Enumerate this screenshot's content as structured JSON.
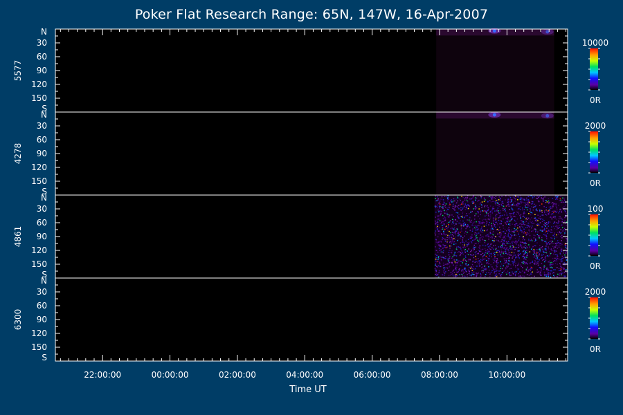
{
  "chart_data": {
    "type": "heatmap",
    "title": "Poker Flat Research Range: 65N, 147W, 16-Apr-2007",
    "xlabel": "Time UT",
    "x_tick_labels": [
      "22:00:00",
      "00:00:00",
      "02:00:00",
      "04:00:00",
      "06:00:00",
      "08:00:00",
      "10:00:00"
    ],
    "x_tick_hours": [
      22,
      24,
      26,
      28,
      30,
      32,
      34
    ],
    "x_range_hours": [
      20.6,
      35.8
    ],
    "y_tick_labels": [
      "N",
      "30",
      "60",
      "90",
      "120",
      "150",
      "S"
    ],
    "y_tick_values": [
      0,
      30,
      60,
      90,
      120,
      150,
      180
    ],
    "y_range": [
      0,
      180
    ],
    "data_start_hour": 31.85,
    "panels": [
      {
        "name": "5577",
        "colorbar_max": "10000",
        "colorbar_min": "0R",
        "features": [
          {
            "type": "band",
            "y_from": 0,
            "y_to": 14,
            "t_from": 31.9,
            "t_to": 35.4,
            "intensity": 0.38
          },
          {
            "type": "spot",
            "t": 33.63,
            "y": 4,
            "intensity": 1.0
          },
          {
            "type": "spot",
            "t": 35.2,
            "y": 6,
            "intensity": 0.65
          }
        ]
      },
      {
        "name": "4278",
        "colorbar_max": "2000",
        "colorbar_min": "0R",
        "features": [
          {
            "type": "band",
            "y_from": 0,
            "y_to": 14,
            "t_from": 31.9,
            "t_to": 35.4,
            "intensity": 0.38
          },
          {
            "type": "spot",
            "t": 33.63,
            "y": 6,
            "intensity": 1.0
          },
          {
            "type": "spot",
            "t": 35.2,
            "y": 8,
            "intensity": 0.65
          }
        ]
      },
      {
        "name": "4861",
        "colorbar_max": "100",
        "colorbar_min": "0R",
        "features": [
          {
            "type": "noise",
            "y_from": 0,
            "y_to": 180,
            "t_from": 31.85,
            "t_to": 35.8,
            "intensity": 0.5
          }
        ]
      },
      {
        "name": "6300",
        "colorbar_max": "2000",
        "colorbar_min": "0R",
        "features": []
      }
    ]
  }
}
